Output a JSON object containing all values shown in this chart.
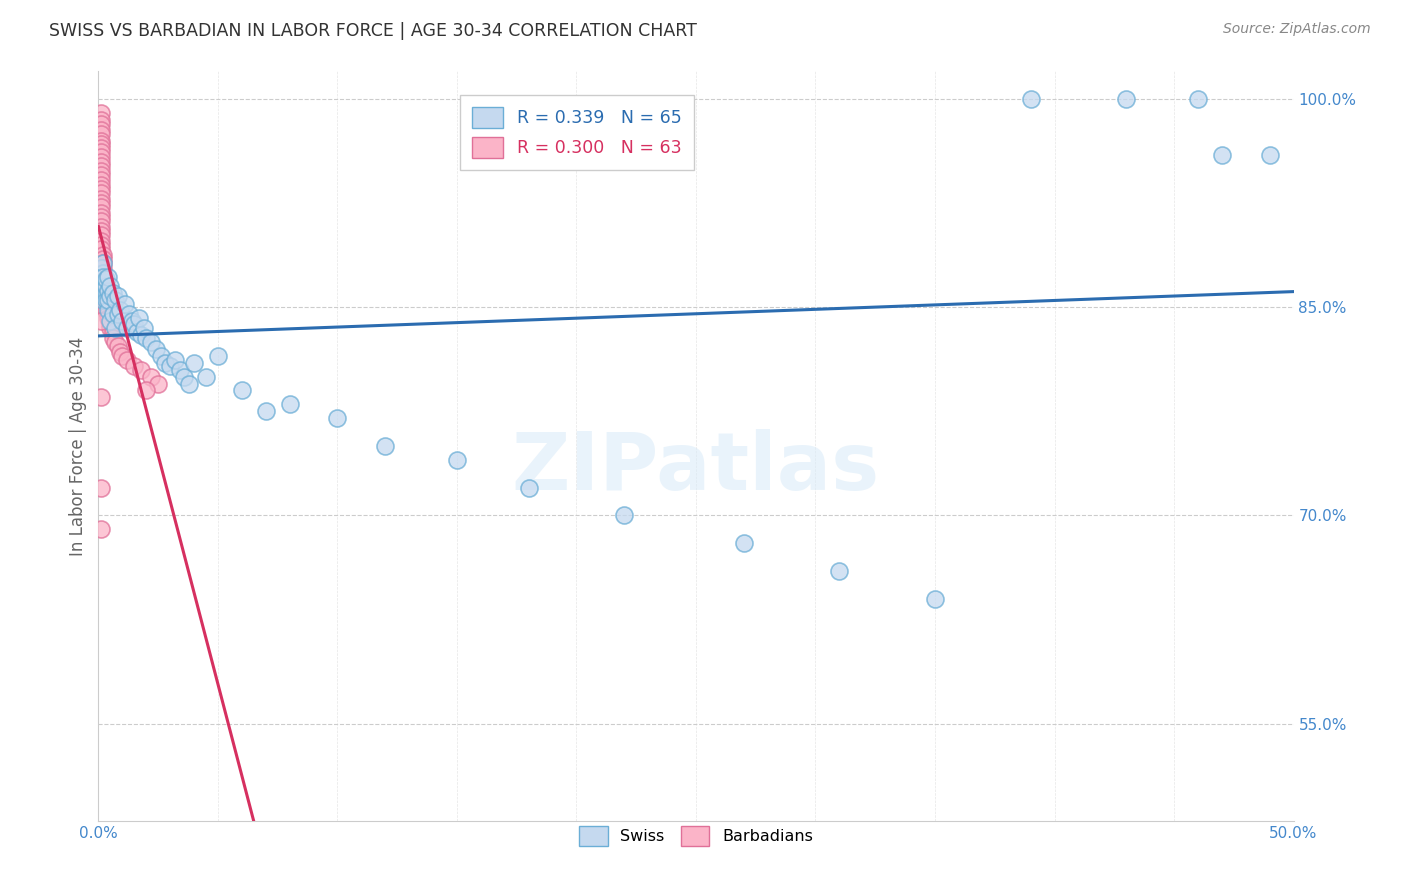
{
  "title": "SWISS VS BARBADIAN IN LABOR FORCE | AGE 30-34 CORRELATION CHART",
  "source": "Source: ZipAtlas.com",
  "ylabel": "In Labor Force | Age 30-34",
  "xlim": [
    0.0,
    0.5
  ],
  "ylim": [
    0.48,
    1.02
  ],
  "xticks": [
    0.0,
    0.05,
    0.1,
    0.15,
    0.2,
    0.25,
    0.3,
    0.35,
    0.4,
    0.45,
    0.5
  ],
  "ytick_positions": [
    0.55,
    0.7,
    0.85,
    1.0
  ],
  "ytick_labels": [
    "55.0%",
    "70.0%",
    "85.0%",
    "100.0%"
  ],
  "xtick_labels": [
    "0.0%",
    "",
    "",
    "",
    "",
    "",
    "",
    "",
    "",
    "",
    "50.0%"
  ],
  "swiss_color": "#c5d9ef",
  "swiss_edge_color": "#6baed6",
  "barbadian_color": "#fbb4c8",
  "barbadian_edge_color": "#e07098",
  "swiss_R": 0.339,
  "swiss_N": 65,
  "barbadian_R": 0.3,
  "barbadian_N": 63,
  "trend_swiss_color": "#2b6cb0",
  "trend_barbadian_color": "#d63060",
  "watermark_text": "ZIPatlas",
  "swiss_x": [
    0.001,
    0.001,
    0.001,
    0.002,
    0.002,
    0.002,
    0.002,
    0.002,
    0.003,
    0.003,
    0.003,
    0.003,
    0.004,
    0.004,
    0.004,
    0.004,
    0.005,
    0.005,
    0.005,
    0.006,
    0.006,
    0.007,
    0.007,
    0.008,
    0.008,
    0.009,
    0.01,
    0.011,
    0.012,
    0.013,
    0.014,
    0.015,
    0.016,
    0.017,
    0.018,
    0.019,
    0.02,
    0.022,
    0.024,
    0.026,
    0.028,
    0.03,
    0.032,
    0.034,
    0.036,
    0.038,
    0.04,
    0.045,
    0.05,
    0.06,
    0.07,
    0.08,
    0.1,
    0.12,
    0.15,
    0.18,
    0.22,
    0.27,
    0.31,
    0.35,
    0.39,
    0.43,
    0.46,
    0.47,
    0.49
  ],
  "swiss_y": [
    0.87,
    0.862,
    0.878,
    0.855,
    0.868,
    0.875,
    0.882,
    0.872,
    0.86,
    0.865,
    0.855,
    0.87,
    0.848,
    0.862,
    0.855,
    0.872,
    0.84,
    0.858,
    0.865,
    0.845,
    0.86,
    0.835,
    0.855,
    0.845,
    0.858,
    0.848,
    0.84,
    0.852,
    0.835,
    0.845,
    0.84,
    0.838,
    0.832,
    0.842,
    0.83,
    0.835,
    0.828,
    0.825,
    0.82,
    0.815,
    0.81,
    0.808,
    0.812,
    0.805,
    0.8,
    0.795,
    0.81,
    0.8,
    0.815,
    0.79,
    0.775,
    0.78,
    0.77,
    0.75,
    0.74,
    0.72,
    0.7,
    0.68,
    0.66,
    0.64,
    1.0,
    1.0,
    1.0,
    0.96,
    0.96
  ],
  "barbadian_x": [
    0.001,
    0.001,
    0.001,
    0.001,
    0.001,
    0.001,
    0.001,
    0.001,
    0.001,
    0.001,
    0.001,
    0.001,
    0.001,
    0.001,
    0.001,
    0.001,
    0.001,
    0.001,
    0.001,
    0.001,
    0.001,
    0.001,
    0.001,
    0.001,
    0.001,
    0.001,
    0.001,
    0.001,
    0.001,
    0.001,
    0.002,
    0.002,
    0.002,
    0.002,
    0.002,
    0.002,
    0.002,
    0.002,
    0.002,
    0.003,
    0.003,
    0.003,
    0.003,
    0.004,
    0.004,
    0.005,
    0.005,
    0.006,
    0.006,
    0.007,
    0.008,
    0.009,
    0.01,
    0.012,
    0.015,
    0.018,
    0.022,
    0.025,
    0.02,
    0.001,
    0.001,
    0.001,
    0.001
  ],
  "barbadian_y": [
    0.99,
    0.985,
    0.982,
    0.978,
    0.975,
    0.97,
    0.968,
    0.965,
    0.962,
    0.958,
    0.955,
    0.952,
    0.948,
    0.945,
    0.942,
    0.938,
    0.935,
    0.932,
    0.928,
    0.925,
    0.922,
    0.918,
    0.915,
    0.912,
    0.908,
    0.905,
    0.902,
    0.898,
    0.895,
    0.892,
    0.888,
    0.885,
    0.882,
    0.878,
    0.875,
    0.872,
    0.868,
    0.865,
    0.862,
    0.858,
    0.855,
    0.852,
    0.848,
    0.845,
    0.842,
    0.838,
    0.835,
    0.832,
    0.828,
    0.825,
    0.822,
    0.818,
    0.815,
    0.812,
    0.808,
    0.805,
    0.8,
    0.795,
    0.79,
    0.785,
    0.84,
    0.72,
    0.69
  ]
}
